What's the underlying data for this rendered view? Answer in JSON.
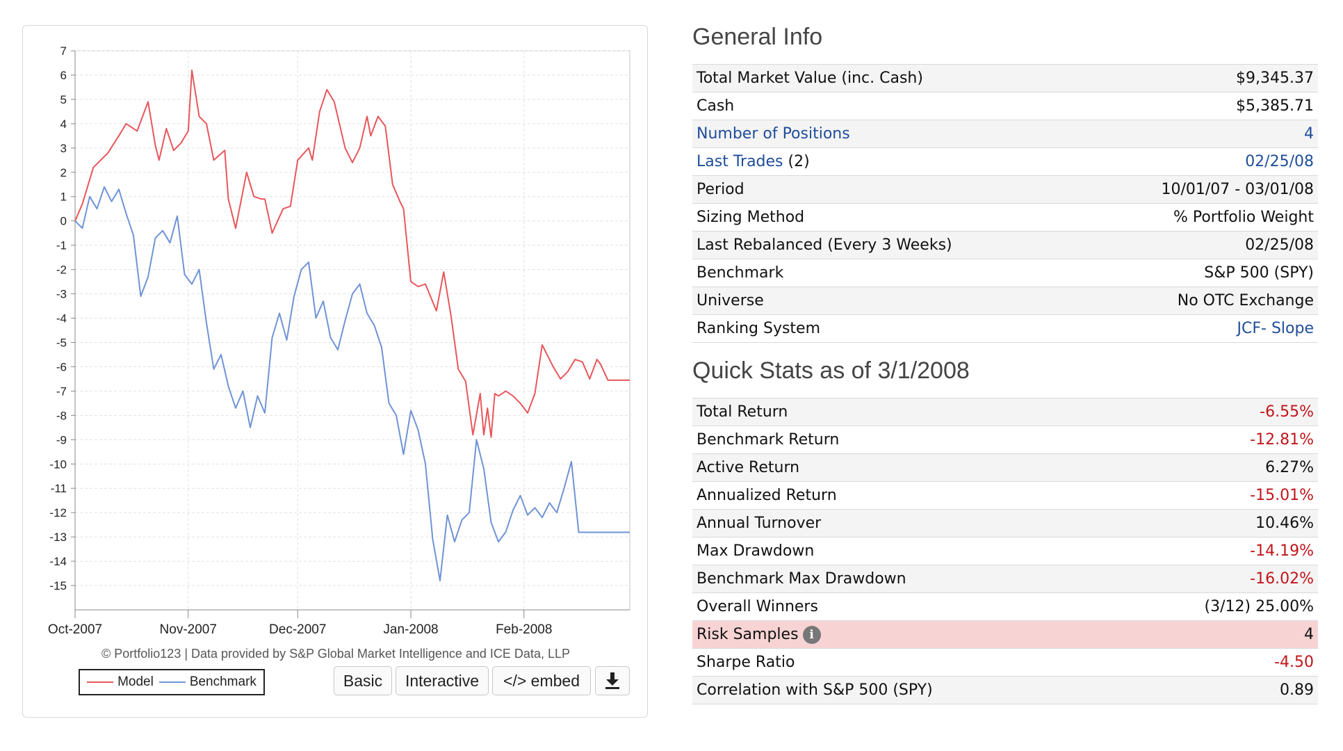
{
  "chart_data": {
    "type": "line",
    "x_ticks": [
      "Oct-2007",
      "Nov-2007",
      "Dec-2007",
      "Jan-2008",
      "Feb-2008"
    ],
    "ylim": [
      -16,
      7
    ],
    "y_ticks": [
      7,
      6,
      5,
      4,
      3,
      2,
      1,
      0,
      -1,
      -2,
      -3,
      -4,
      -5,
      -6,
      -7,
      -8,
      -9,
      -10,
      -11,
      -12,
      -13,
      -14,
      -15
    ],
    "grid": true,
    "legend_position": "bottom-left",
    "series": [
      {
        "name": "Model",
        "color": "#e8565b",
        "x": [
          "2007-10-01",
          "2007-10-03",
          "2007-10-06",
          "2007-10-10",
          "2007-10-13",
          "2007-10-15",
          "2007-10-18",
          "2007-10-21",
          "2007-10-23",
          "2007-10-24",
          "2007-10-26",
          "2007-10-28",
          "2007-10-30",
          "2007-11-01",
          "2007-11-02",
          "2007-11-04",
          "2007-11-06",
          "2007-11-08",
          "2007-11-11",
          "2007-11-12",
          "2007-11-14",
          "2007-11-17",
          "2007-11-19",
          "2007-11-21",
          "2007-11-22",
          "2007-11-24",
          "2007-11-27",
          "2007-11-29",
          "2007-12-01",
          "2007-12-04",
          "2007-12-05",
          "2007-12-07",
          "2007-12-09",
          "2007-12-11",
          "2007-12-14",
          "2007-12-16",
          "2007-12-18",
          "2007-12-20",
          "2007-12-21",
          "2007-12-23",
          "2007-12-25",
          "2007-12-27",
          "2007-12-29",
          "2007-12-30",
          "2008-01-01",
          "2008-01-03",
          "2008-01-05",
          "2008-01-08",
          "2008-01-10",
          "2008-01-12",
          "2008-01-14",
          "2008-01-16",
          "2008-01-18",
          "2008-01-20",
          "2008-01-21",
          "2008-01-22",
          "2008-01-23",
          "2008-01-24",
          "2008-01-25",
          "2008-01-27",
          "2008-01-29",
          "2008-01-31",
          "2008-02-02",
          "2008-02-04",
          "2008-02-06",
          "2008-02-09",
          "2008-02-11",
          "2008-02-13",
          "2008-02-15",
          "2008-02-17",
          "2008-02-19",
          "2008-02-21",
          "2008-02-22",
          "2008-02-24",
          "2008-02-26",
          "2008-02-29",
          "2008-03-01"
        ],
        "values": [
          0,
          0.7,
          2.2,
          2.8,
          3.5,
          4.0,
          3.7,
          4.9,
          3.1,
          2.5,
          3.8,
          2.9,
          3.2,
          3.7,
          6.2,
          4.3,
          4.0,
          2.5,
          2.9,
          0.9,
          -0.3,
          2.0,
          1.0,
          0.9,
          0.9,
          -0.5,
          0.5,
          0.6,
          2.5,
          3.0,
          2.5,
          4.5,
          5.4,
          4.9,
          3.0,
          2.4,
          3.0,
          4.3,
          3.5,
          4.3,
          3.9,
          1.5,
          0.8,
          0.5,
          -2.5,
          -2.7,
          -2.6,
          -3.7,
          -2.1,
          -3.9,
          -6.1,
          -6.6,
          -8.8,
          -7.1,
          -8.8,
          -7.7,
          -8.9,
          -7.1,
          -7.2,
          -7.0,
          -7.2,
          -7.5,
          -7.9,
          -7.1,
          -5.1,
          -6.0,
          -6.5,
          -6.2,
          -5.7,
          -5.8,
          -6.5,
          -5.7,
          -5.9,
          -6.55,
          -6.55,
          -6.55,
          -6.55
        ]
      },
      {
        "name": "Benchmark",
        "color": "#6f93d6",
        "x": [
          "2007-10-01",
          "2007-10-03",
          "2007-10-05",
          "2007-10-07",
          "2007-10-09",
          "2007-10-11",
          "2007-10-13",
          "2007-10-15",
          "2007-10-17",
          "2007-10-19",
          "2007-10-21",
          "2007-10-23",
          "2007-10-25",
          "2007-10-27",
          "2007-10-29",
          "2007-10-31",
          "2007-11-02",
          "2007-11-04",
          "2007-11-06",
          "2007-11-08",
          "2007-11-10",
          "2007-11-12",
          "2007-11-14",
          "2007-11-16",
          "2007-11-18",
          "2007-11-20",
          "2007-11-22",
          "2007-11-24",
          "2007-11-26",
          "2007-11-28",
          "2007-11-30",
          "2007-12-02",
          "2007-12-04",
          "2007-12-06",
          "2007-12-08",
          "2007-12-10",
          "2007-12-12",
          "2007-12-14",
          "2007-12-16",
          "2007-12-18",
          "2007-12-20",
          "2007-12-22",
          "2007-12-24",
          "2007-12-26",
          "2007-12-28",
          "2007-12-30",
          "2008-01-01",
          "2008-01-03",
          "2008-01-05",
          "2008-01-07",
          "2008-01-09",
          "2008-01-11",
          "2008-01-13",
          "2008-01-15",
          "2008-01-17",
          "2008-01-19",
          "2008-01-21",
          "2008-01-23",
          "2008-01-25",
          "2008-01-27",
          "2008-01-29",
          "2008-01-31",
          "2008-02-02",
          "2008-02-04",
          "2008-02-06",
          "2008-02-08",
          "2008-02-10",
          "2008-02-12",
          "2008-02-14",
          "2008-02-16",
          "2008-02-18",
          "2008-02-20",
          "2008-02-22",
          "2008-02-24",
          "2008-02-26",
          "2008-02-28",
          "2008-03-01"
        ],
        "values": [
          0,
          -0.3,
          1.0,
          0.5,
          1.4,
          0.8,
          1.3,
          0.3,
          -0.6,
          -3.1,
          -2.3,
          -0.7,
          -0.4,
          -0.9,
          0.2,
          -2.2,
          -2.6,
          -2.0,
          -4.2,
          -6.1,
          -5.5,
          -6.8,
          -7.7,
          -7.0,
          -8.5,
          -7.2,
          -7.9,
          -4.8,
          -3.8,
          -4.9,
          -3.1,
          -2.0,
          -1.7,
          -4.0,
          -3.3,
          -4.8,
          -5.3,
          -4.1,
          -3.0,
          -2.6,
          -3.8,
          -4.3,
          -5.2,
          -7.5,
          -8.0,
          -9.6,
          -7.8,
          -8.6,
          -10.0,
          -13.1,
          -14.8,
          -12.1,
          -13.2,
          -12.3,
          -12.0,
          -9.0,
          -10.2,
          -12.4,
          -13.2,
          -12.8,
          -11.9,
          -11.3,
          -12.1,
          -11.8,
          -12.2,
          -11.6,
          -12.0,
          -11.0,
          -9.9,
          -12.81,
          -12.81,
          -12.81,
          -12.81,
          -12.81,
          -12.81,
          -12.81,
          -12.81
        ]
      }
    ],
    "copyright": "© Portfolio123 | Data provided by S&P Global Market Intelligence and ICE Data, LLP",
    "legend_labels": {
      "model": "Model",
      "benchmark": "Benchmark"
    }
  },
  "chart_buttons": {
    "basic": "Basic",
    "interactive": "Interactive",
    "embed": "</> embed",
    "download_icon": "download-icon"
  },
  "general_info": {
    "title": "General Info",
    "rows": [
      {
        "label": "Total Market Value (inc. Cash)",
        "value": "$9,345.37"
      },
      {
        "label": "Cash",
        "value": "$5,385.71"
      },
      {
        "label": "Number of Positions",
        "value": "4"
      },
      {
        "label": "Last Trades",
        "label_suffix": "(2)",
        "value": "02/25/08"
      },
      {
        "label": "Period",
        "value": "10/01/07 - 03/01/08"
      },
      {
        "label": "Sizing Method",
        "value": "% Portfolio Weight"
      },
      {
        "label": "Last Rebalanced (Every 3 Weeks)",
        "value": "02/25/08"
      },
      {
        "label": "Benchmark",
        "value": "S&P 500 (SPY)"
      },
      {
        "label": "Universe",
        "value": "No OTC Exchange"
      },
      {
        "label": "Ranking System",
        "value": "JCF- Slope"
      }
    ]
  },
  "quick_stats": {
    "title": "Quick Stats as of 3/1/2008",
    "rows": [
      {
        "label": "Total Return",
        "value": "-6.55%"
      },
      {
        "label": "Benchmark Return",
        "value": "-12.81%"
      },
      {
        "label": "Active Return",
        "value": "6.27%"
      },
      {
        "label": "Annualized Return",
        "value": "-15.01%"
      },
      {
        "label": "Annual Turnover",
        "value": "10.46%"
      },
      {
        "label": "Max Drawdown",
        "value": "-14.19%"
      },
      {
        "label": "Benchmark Max Drawdown",
        "value": "-16.02%"
      },
      {
        "label": "Overall Winners",
        "value": "(3/12) 25.00%"
      },
      {
        "label": "Risk Samples",
        "value": "4",
        "icon": "info-icon"
      },
      {
        "label": "Sharpe Ratio",
        "value": "-4.50"
      },
      {
        "label": "Correlation with S&P 500 (SPY)",
        "value": "0.89"
      }
    ]
  },
  "colors": {
    "negative": "#c0151a",
    "link": "#1f4d9a",
    "highlight_row": "#f7d3d4"
  }
}
